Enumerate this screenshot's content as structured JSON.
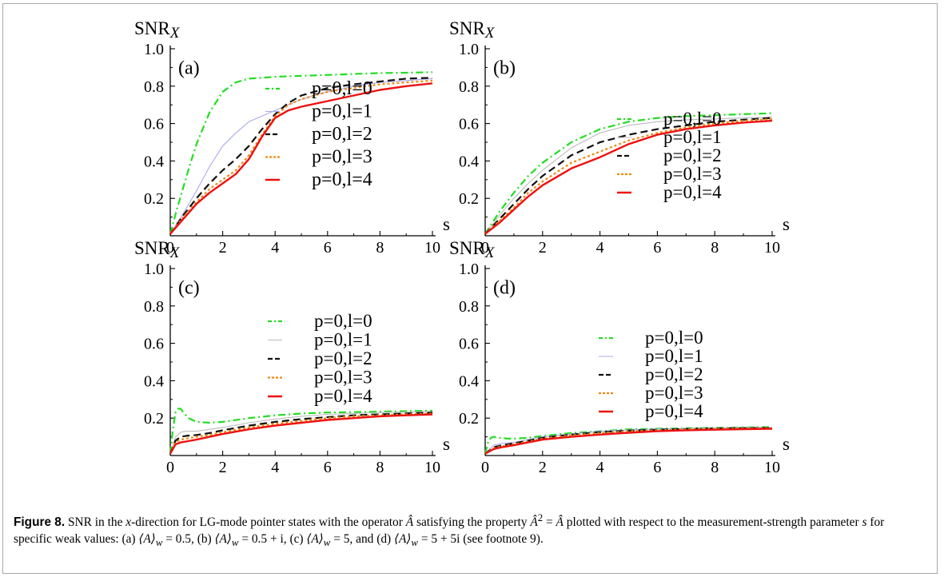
{
  "chart_data": [
    {
      "type": "line",
      "panel_label": "(a)",
      "ylabel": "SNR",
      "ylabel_sub": "X",
      "xlabel": "s",
      "xlim": [
        0,
        10
      ],
      "ylim": [
        0,
        1.0
      ],
      "xticks": [
        0,
        2,
        4,
        6,
        8,
        10
      ],
      "yticks": [
        0.2,
        0.4,
        0.6,
        0.8,
        1.0
      ],
      "xtick_labels": [
        "0",
        "2",
        "4",
        "6",
        "8",
        "10"
      ],
      "ytick_labels": [
        "0.2",
        "0.4",
        "0.6",
        "0.8",
        "1.0"
      ],
      "legend_position": "right-middle",
      "series": [
        {
          "name": "p=0,l=0",
          "color": "#22dd22",
          "dash": "dashdot",
          "x": [
            0,
            0.25,
            0.5,
            0.75,
            1,
            1.5,
            2,
            2.5,
            3,
            3.5,
            4,
            5,
            6,
            7,
            8,
            9,
            10
          ],
          "y": [
            0.01,
            0.14,
            0.26,
            0.38,
            0.49,
            0.66,
            0.77,
            0.82,
            0.84,
            0.845,
            0.85,
            0.855,
            0.86,
            0.865,
            0.87,
            0.872,
            0.875
          ]
        },
        {
          "name": "p=0,l=1",
          "color": "#aaaaee",
          "dash": "solid",
          "x": [
            0,
            0.5,
            1,
            1.5,
            2,
            2.5,
            3,
            3.5,
            4,
            5,
            6,
            7,
            8,
            9,
            10
          ],
          "y": [
            0.01,
            0.12,
            0.24,
            0.37,
            0.48,
            0.55,
            0.61,
            0.64,
            0.67,
            0.73,
            0.77,
            0.8,
            0.82,
            0.83,
            0.84
          ]
        },
        {
          "name": "p=0,l=2",
          "color": "#111111",
          "dash": "dash",
          "x": [
            0,
            0.5,
            1,
            1.5,
            2,
            2.5,
            3,
            3.5,
            4,
            4.5,
            5,
            6,
            7,
            8,
            9,
            10
          ],
          "y": [
            0.01,
            0.11,
            0.2,
            0.28,
            0.35,
            0.41,
            0.48,
            0.57,
            0.65,
            0.71,
            0.75,
            0.79,
            0.81,
            0.825,
            0.84,
            0.845
          ]
        },
        {
          "name": "p=0,l=3",
          "color": "#f08a10",
          "dash": "dot",
          "x": [
            0,
            0.5,
            1,
            1.5,
            2,
            2.5,
            3,
            3.5,
            4,
            4.5,
            5,
            6,
            7,
            8,
            9,
            10
          ],
          "y": [
            0.01,
            0.1,
            0.18,
            0.25,
            0.3,
            0.35,
            0.43,
            0.54,
            0.64,
            0.7,
            0.73,
            0.77,
            0.79,
            0.81,
            0.82,
            0.83
          ]
        },
        {
          "name": "p=0,l=4",
          "color": "#ee1111",
          "dash": "solid",
          "x": [
            0,
            0.5,
            1,
            1.5,
            2,
            2.5,
            3,
            3.5,
            4,
            4.5,
            5,
            6,
            7,
            8,
            9,
            10
          ],
          "y": [
            0.01,
            0.09,
            0.17,
            0.23,
            0.28,
            0.33,
            0.41,
            0.53,
            0.63,
            0.67,
            0.69,
            0.72,
            0.75,
            0.78,
            0.8,
            0.815
          ]
        }
      ]
    },
    {
      "type": "line",
      "panel_label": "(b)",
      "ylabel": "SNR",
      "ylabel_sub": "X",
      "xlabel": "s",
      "xlim": [
        0,
        10
      ],
      "ylim": [
        0,
        1.0
      ],
      "xticks": [
        0,
        2,
        4,
        6,
        8,
        10
      ],
      "yticks": [
        0.2,
        0.4,
        0.6,
        0.8,
        1.0
      ],
      "xtick_labels": [
        "0",
        "2",
        "4",
        "6",
        "8",
        "10"
      ],
      "ytick_labels": [
        "0.2",
        "0.4",
        "0.6",
        "0.8",
        "1.0"
      ],
      "legend_position": "right-bottom",
      "series": [
        {
          "name": "p=0,l=0",
          "color": "#22dd22",
          "dash": "dashdot",
          "x": [
            0,
            0.5,
            1,
            1.5,
            2,
            3,
            4,
            5,
            6,
            7,
            8,
            9,
            10
          ],
          "y": [
            0.01,
            0.13,
            0.23,
            0.32,
            0.39,
            0.5,
            0.57,
            0.61,
            0.63,
            0.64,
            0.645,
            0.65,
            0.655
          ]
        },
        {
          "name": "p=0,l=1",
          "color": "#bbbbbb",
          "dash": "solid",
          "x": [
            0,
            0.5,
            1,
            1.5,
            2,
            3,
            4,
            5,
            6,
            7,
            8,
            9,
            10
          ],
          "y": [
            0.01,
            0.11,
            0.2,
            0.28,
            0.35,
            0.47,
            0.55,
            0.59,
            0.61,
            0.62,
            0.625,
            0.63,
            0.635
          ]
        },
        {
          "name": "p=0,l=2",
          "color": "#111111",
          "dash": "dash",
          "x": [
            0,
            0.5,
            1,
            1.5,
            2,
            3,
            4,
            5,
            6,
            7,
            8,
            9,
            10
          ],
          "y": [
            0.01,
            0.09,
            0.17,
            0.25,
            0.32,
            0.43,
            0.5,
            0.54,
            0.57,
            0.59,
            0.61,
            0.62,
            0.63
          ]
        },
        {
          "name": "p=0,l=3",
          "color": "#f08a10",
          "dash": "dot",
          "x": [
            0,
            0.5,
            1,
            1.5,
            2,
            3,
            4,
            5,
            6,
            7,
            8,
            9,
            10
          ],
          "y": [
            0.01,
            0.08,
            0.15,
            0.23,
            0.29,
            0.39,
            0.45,
            0.51,
            0.55,
            0.58,
            0.6,
            0.615,
            0.625
          ]
        },
        {
          "name": "p=0,l=4",
          "color": "#ee1111",
          "dash": "solid",
          "x": [
            0,
            0.5,
            1,
            1.5,
            2,
            3,
            4,
            5,
            6,
            7,
            8,
            9,
            10
          ],
          "y": [
            0.01,
            0.07,
            0.14,
            0.21,
            0.27,
            0.36,
            0.42,
            0.49,
            0.54,
            0.57,
            0.59,
            0.605,
            0.615
          ]
        }
      ]
    },
    {
      "type": "line",
      "panel_label": "(c)",
      "ylabel": "SNR",
      "ylabel_sub": "X",
      "xlabel": "s",
      "xlim": [
        0,
        10
      ],
      "ylim": [
        0,
        1.0
      ],
      "xticks": [
        0,
        2,
        4,
        6,
        8,
        10
      ],
      "yticks": [
        0.2,
        0.4,
        0.6,
        0.8,
        1.0
      ],
      "xtick_labels": [
        "0",
        "2",
        "4",
        "6",
        "8",
        "10"
      ],
      "ytick_labels": [
        "0.2",
        "0.4",
        "0.6",
        "0.8",
        "1.0"
      ],
      "legend_position": "right-top",
      "series": [
        {
          "name": "p=0,l=0",
          "color": "#22dd22",
          "dash": "dashdot",
          "x": [
            0,
            0.1,
            0.2,
            0.3,
            0.4,
            0.5,
            0.7,
            1,
            1.5,
            2,
            3,
            4,
            5,
            6,
            7,
            8,
            9,
            10
          ],
          "y": [
            0.01,
            0.14,
            0.23,
            0.25,
            0.25,
            0.23,
            0.2,
            0.18,
            0.175,
            0.18,
            0.2,
            0.215,
            0.225,
            0.23,
            0.232,
            0.235,
            0.237,
            0.24
          ]
        },
        {
          "name": "p=0,l=1",
          "color": "#bbbbbb",
          "dash": "solid",
          "x": [
            0,
            0.2,
            0.4,
            0.6,
            1,
            1.5,
            2,
            3,
            4,
            5,
            6,
            7,
            8,
            9,
            10
          ],
          "y": [
            0.01,
            0.1,
            0.125,
            0.13,
            0.13,
            0.14,
            0.15,
            0.175,
            0.195,
            0.21,
            0.22,
            0.225,
            0.23,
            0.232,
            0.235
          ]
        },
        {
          "name": "p=0,l=2",
          "color": "#111111",
          "dash": "dash",
          "x": [
            0,
            0.2,
            0.4,
            0.6,
            1,
            1.5,
            2,
            3,
            4,
            5,
            6,
            7,
            8,
            9,
            10
          ],
          "y": [
            0.01,
            0.08,
            0.1,
            0.105,
            0.11,
            0.12,
            0.135,
            0.16,
            0.18,
            0.195,
            0.205,
            0.215,
            0.22,
            0.225,
            0.23
          ]
        },
        {
          "name": "p=0,l=3",
          "color": "#f08a10",
          "dash": "dot",
          "x": [
            0,
            0.2,
            0.4,
            0.6,
            1,
            1.5,
            2,
            3,
            4,
            5,
            6,
            7,
            8,
            9,
            10
          ],
          "y": [
            0.01,
            0.07,
            0.085,
            0.09,
            0.1,
            0.11,
            0.125,
            0.15,
            0.17,
            0.185,
            0.2,
            0.21,
            0.215,
            0.22,
            0.225
          ]
        },
        {
          "name": "p=0,l=4",
          "color": "#ee1111",
          "dash": "solid",
          "x": [
            0,
            0.2,
            0.4,
            0.6,
            1,
            1.5,
            2,
            3,
            4,
            5,
            6,
            7,
            8,
            9,
            10
          ],
          "y": [
            0.01,
            0.06,
            0.07,
            0.075,
            0.085,
            0.1,
            0.115,
            0.14,
            0.16,
            0.175,
            0.19,
            0.2,
            0.21,
            0.215,
            0.22
          ]
        }
      ]
    },
    {
      "type": "line",
      "panel_label": "(d)",
      "ylabel": "SNR",
      "ylabel_sub": "X",
      "xlabel": "s",
      "xlim": [
        0,
        10
      ],
      "ylim": [
        0,
        1.0
      ],
      "xticks": [
        0,
        2,
        4,
        6,
        8,
        10
      ],
      "yticks": [
        0.2,
        0.4,
        0.6,
        0.8,
        1.0
      ],
      "xtick_labels": [
        "0",
        "2",
        "4",
        "6",
        "8",
        "10"
      ],
      "ytick_labels": [
        "0.2",
        "0.4",
        "0.6",
        "0.8",
        "1.0"
      ],
      "legend_position": "right-top",
      "series": [
        {
          "name": "p=0,l=0",
          "color": "#22dd22",
          "dash": "dashdot",
          "x": [
            0,
            0.1,
            0.2,
            0.3,
            0.5,
            0.8,
            1,
            1.5,
            2,
            3,
            4,
            5,
            6,
            7,
            8,
            9,
            10
          ],
          "y": [
            0.01,
            0.07,
            0.095,
            0.1,
            0.095,
            0.09,
            0.09,
            0.095,
            0.105,
            0.12,
            0.13,
            0.14,
            0.143,
            0.146,
            0.148,
            0.15,
            0.152
          ]
        },
        {
          "name": "p=0,l=1",
          "color": "#aaaaee",
          "dash": "solid",
          "x": [
            0,
            0.3,
            0.6,
            1,
            1.5,
            2,
            3,
            4,
            5,
            6,
            7,
            8,
            9,
            10
          ],
          "y": [
            0.01,
            0.055,
            0.065,
            0.07,
            0.085,
            0.1,
            0.115,
            0.13,
            0.137,
            0.142,
            0.145,
            0.147,
            0.149,
            0.15
          ]
        },
        {
          "name": "p=0,l=2",
          "color": "#111111",
          "dash": "dash",
          "x": [
            0,
            0.3,
            0.6,
            1,
            1.5,
            2,
            3,
            4,
            5,
            6,
            7,
            8,
            9,
            10
          ],
          "y": [
            0.01,
            0.045,
            0.055,
            0.065,
            0.08,
            0.095,
            0.112,
            0.125,
            0.133,
            0.138,
            0.142,
            0.145,
            0.147,
            0.148
          ]
        },
        {
          "name": "p=0,l=3",
          "color": "#f08a10",
          "dash": "dot",
          "x": [
            0,
            0.3,
            0.6,
            1,
            1.5,
            2,
            3,
            4,
            5,
            6,
            7,
            8,
            9,
            10
          ],
          "y": [
            0.01,
            0.04,
            0.05,
            0.06,
            0.075,
            0.09,
            0.108,
            0.12,
            0.13,
            0.135,
            0.14,
            0.143,
            0.145,
            0.146
          ]
        },
        {
          "name": "p=0,l=4",
          "color": "#ee1111",
          "dash": "solid",
          "x": [
            0,
            0.3,
            0.6,
            1,
            1.5,
            2,
            3,
            4,
            5,
            6,
            7,
            8,
            9,
            10
          ],
          "y": [
            0.01,
            0.035,
            0.045,
            0.055,
            0.07,
            0.085,
            0.1,
            0.112,
            0.122,
            0.13,
            0.135,
            0.138,
            0.141,
            0.143
          ]
        }
      ]
    }
  ],
  "caption": {
    "label": "Figure 8.",
    "parts": [
      " SNR in the ",
      "x",
      "-direction for LG-mode pointer states with the operator ",
      "Â",
      " satisfying the property ",
      "Â",
      "2",
      " = ",
      "Â",
      " plotted with respect to the measurement-strength parameter ",
      "s",
      " for specific weak values: (a) ",
      "⟨A⟩",
      "w",
      " = 0.5, (b) ",
      "⟨A⟩",
      "w",
      " = 0.5 + i, (c) ",
      "⟨A⟩",
      "w",
      " = 5, and (d) ",
      "⟨A⟩",
      "w",
      " = 5 + 5i (see footnote 9)."
    ]
  }
}
